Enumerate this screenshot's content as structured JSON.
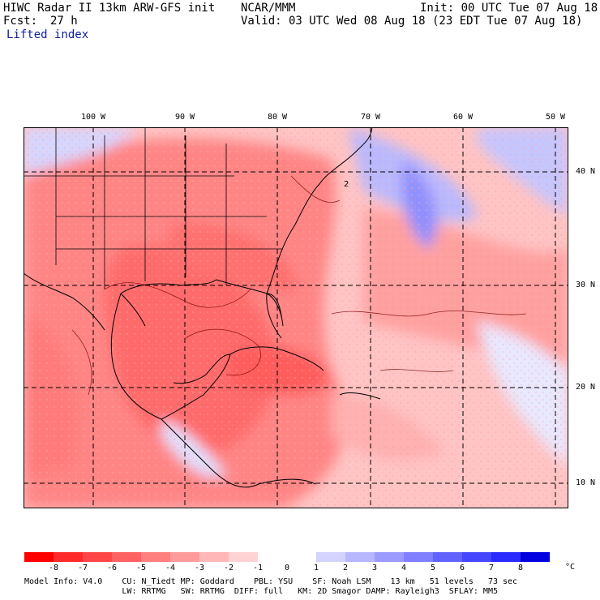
{
  "header": {
    "title": "HIWC Radar II 13km ARW-GFS init",
    "org": "NCAR/MMM",
    "init": "Init: 00 UTC Tue 07 Aug 18",
    "fcst_label": "Fcst:",
    "fcst_value": "27 h",
    "valid": "Valid: 03 UTC Wed 08 Aug 18 (23 EDT Tue 07 Aug 18)",
    "field": "Lifted index"
  },
  "map": {
    "lon_labels": [
      "100 W",
      "90 W",
      "80 W",
      "70 W",
      "60 W",
      "50 W"
    ],
    "lat_labels": [
      "40 N",
      "30 N",
      "20 N",
      "10 N"
    ],
    "contour_label": "2"
  },
  "colorbar": {
    "colors": [
      "#ff0000",
      "#ff2a2a",
      "#ff4646",
      "#ff6262",
      "#ff7f7f",
      "#ff9b9b",
      "#ffb7b7",
      "#ffd3d3",
      "#ffffff",
      "#ffffff",
      "#d3d3ff",
      "#b7b7ff",
      "#9b9bff",
      "#7f7fff",
      "#6262ff",
      "#4646ff",
      "#2a2aff",
      "#0000e0"
    ],
    "labels": [
      "-8",
      "-7",
      "-6",
      "-5",
      "-4",
      "-3",
      "-2",
      "-1",
      "0",
      "1",
      "2",
      "3",
      "4",
      "5",
      "6",
      "7",
      "8"
    ],
    "unit": "°C"
  },
  "footer": {
    "line1": "Model Info: V4.0    CU: N_Tiedt MP: Goddard    PBL: YSU    SF: Noah LSM    13 km   51 levels   73 sec",
    "line2": "                    LW: RRTMG   SW: RRTMG  DIFF: full   KM: 2D Smagor DAMP: Rayleigh3  SFLAY: MM5"
  }
}
